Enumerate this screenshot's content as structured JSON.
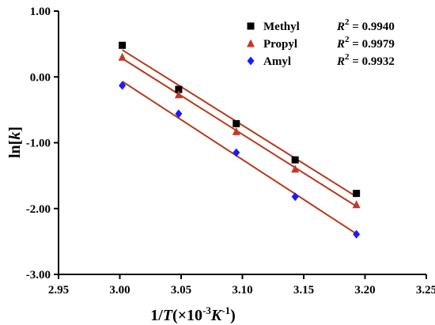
{
  "chart_data": {
    "type": "scatter",
    "xlabel": {
      "prefix": "1/",
      "var": "T",
      "open": "(×10",
      "exp": "-3",
      "unit": "K",
      "unit_exp": "-1",
      "close": ")"
    },
    "ylabel": {
      "prefix": "ln[",
      "var": "k",
      "suffix": "]"
    },
    "xlim": [
      2.95,
      3.25
    ],
    "ylim": [
      -3.0,
      1.0
    ],
    "x_ticks": [
      "2.95",
      "3.00",
      "3.05",
      "3.10",
      "3.15",
      "3.20",
      "3.25"
    ],
    "y_ticks": [
      "1.00",
      "0.00",
      "-1.00",
      "-2.00",
      "-3.00"
    ],
    "x_tick_values": [
      2.95,
      3.0,
      3.05,
      3.1,
      3.15,
      3.2,
      3.25
    ],
    "y_tick_values": [
      1.0,
      0.0,
      -1.0,
      -2.0,
      -3.0
    ],
    "grid": false,
    "legend_position": "top-right",
    "trendline_color": "#b5391b",
    "series": [
      {
        "name": "Methyl",
        "r2_label": "R",
        "r2_exp": "2",
        "r2_value": " = 0.9940",
        "marker": "square",
        "color": "#000000",
        "x": [
          3.002,
          3.048,
          3.095,
          3.143,
          3.193
        ],
        "y": [
          0.48,
          -0.19,
          -0.71,
          -1.26,
          -1.77
        ]
      },
      {
        "name": "Propyl",
        "r2_label": "R",
        "r2_exp": "2",
        "r2_value": " = 0.9979",
        "marker": "triangle",
        "color": "#c0392b",
        "x": [
          3.002,
          3.048,
          3.095,
          3.143,
          3.193
        ],
        "y": [
          0.3,
          -0.27,
          -0.83,
          -1.4,
          -1.94
        ]
      },
      {
        "name": "Amyl",
        "r2_label": "R",
        "r2_exp": "2",
        "r2_value": " = 0.9932",
        "marker": "diamond",
        "color": "#1a1aff",
        "x": [
          3.002,
          3.048,
          3.095,
          3.143,
          3.193
        ],
        "y": [
          -0.13,
          -0.56,
          -1.15,
          -1.82,
          -2.39
        ]
      }
    ]
  }
}
